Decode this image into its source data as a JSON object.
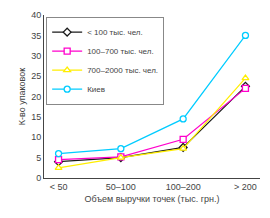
{
  "chart_data": {
    "type": "line",
    "xlabel": "Объем выручки точек (тыс. грн.)",
    "ylabel": "К-во упаковок",
    "categories": [
      "< 50",
      "50–100",
      "100–200",
      "> 200"
    ],
    "series": [
      {
        "name": "< 100 тыс. чел.",
        "color": "#1a1a1a",
        "marker": "diamond",
        "values": [
          4.0,
          5.0,
          7.5,
          22.5
        ]
      },
      {
        "name": "100–700 тыс. чел.",
        "color": "#ff00cc",
        "marker": "square",
        "values": [
          4.5,
          5.2,
          9.5,
          22.0
        ]
      },
      {
        "name": "700–2000 тыс. чел.",
        "color": "#ffee00",
        "marker": "triangle-up",
        "values": [
          2.5,
          5.0,
          7.2,
          24.5
        ]
      },
      {
        "name": "Киев",
        "color": "#00ccff",
        "marker": "circle",
        "values": [
          6.0,
          7.2,
          14.5,
          35.0
        ]
      }
    ],
    "ylim": [
      0,
      40
    ],
    "yticks": [
      0,
      5,
      10,
      15,
      20,
      25,
      30,
      35,
      40
    ],
    "grid": false,
    "legend": "upper left"
  }
}
